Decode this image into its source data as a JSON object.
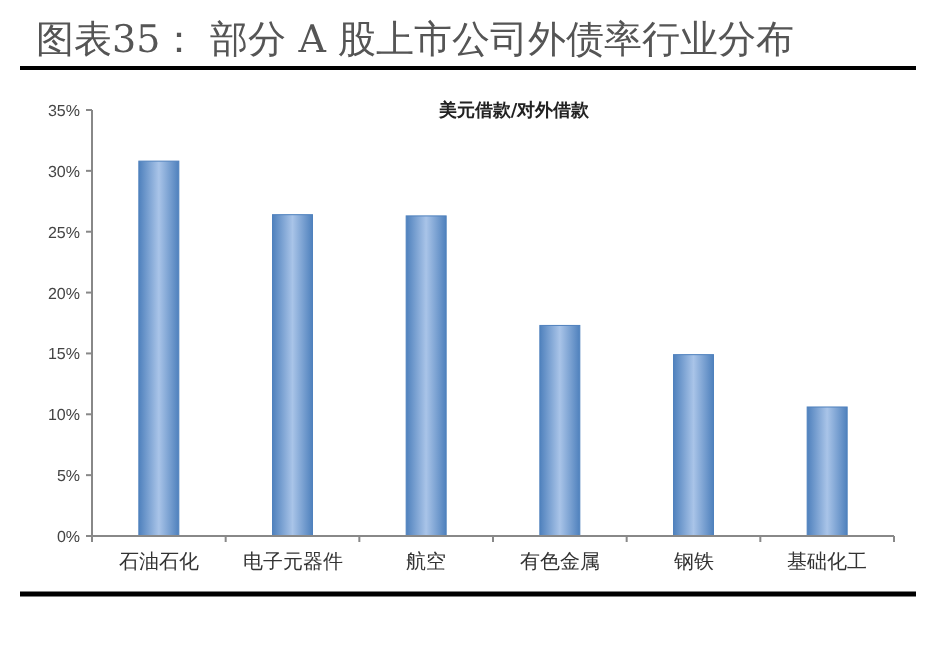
{
  "chart_data": {
    "type": "bar",
    "title": "图表35：    部分 A 股上市公司外债率行业分布",
    "subtitle": "美元借款/对外借款",
    "categories": [
      "石油石化",
      "电子元器件",
      "航空",
      "有色金属",
      "钢铁",
      "基础化工"
    ],
    "values": [
      30.8,
      26.4,
      26.3,
      17.3,
      14.9,
      10.6
    ],
    "color": "#4f81bd",
    "ylim": [
      0,
      35
    ],
    "yticks": [
      {
        "value": 0,
        "label": "0%"
      },
      {
        "value": 5,
        "label": "5%"
      },
      {
        "value": 10,
        "label": "10%"
      },
      {
        "value": 15,
        "label": "15%"
      },
      {
        "value": 20,
        "label": "20%"
      },
      {
        "value": 25,
        "label": "25%"
      },
      {
        "value": 30,
        "label": "30%"
      },
      {
        "value": 35,
        "label": "35%"
      }
    ]
  }
}
